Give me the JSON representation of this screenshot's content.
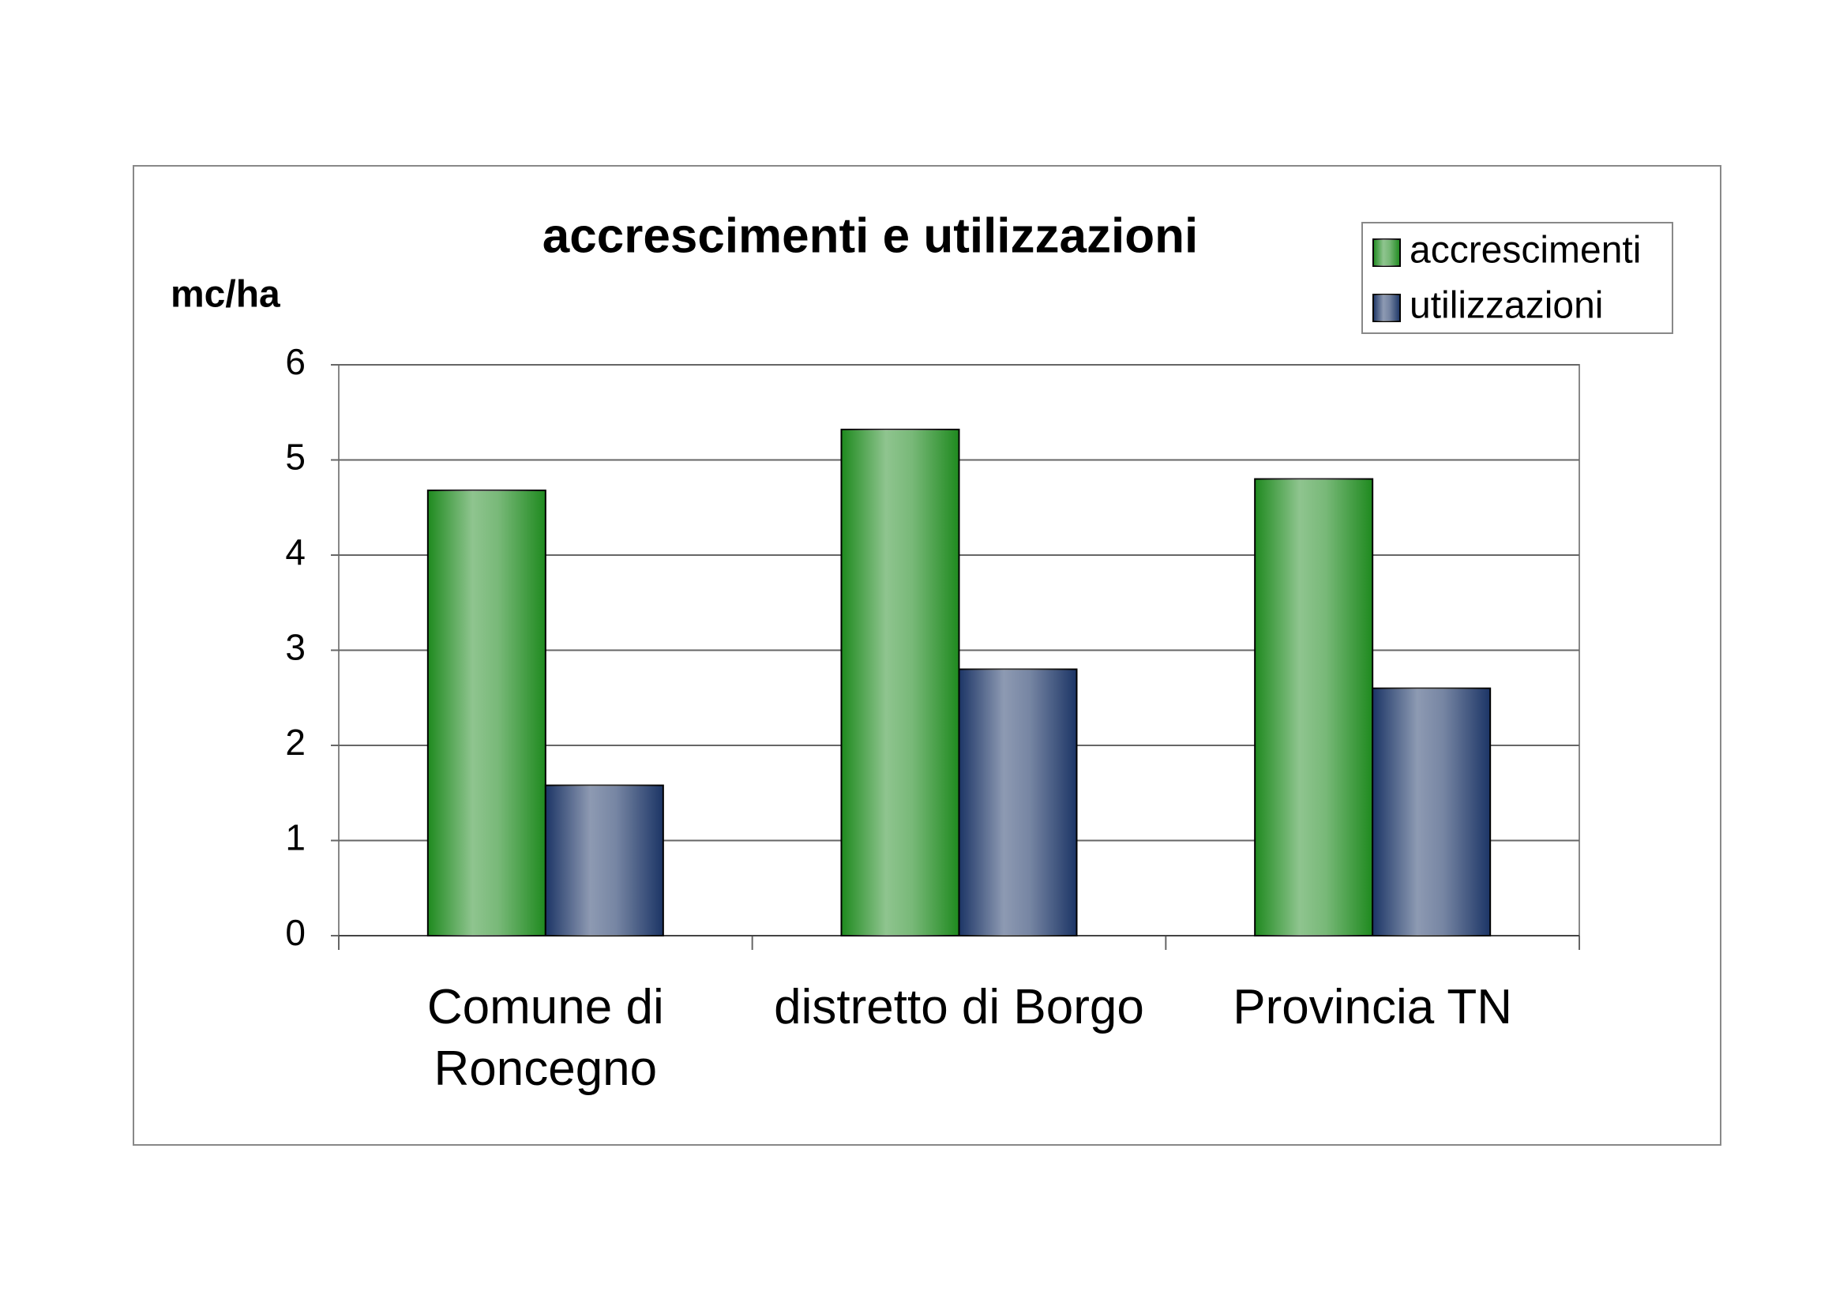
{
  "chart_data": {
    "type": "bar",
    "title": "accrescimenti e utilizzazioni",
    "y_axis_label": "mc/ha",
    "categories": [
      "Comune di Roncegno",
      "distretto di Borgo",
      "Provincia TN"
    ],
    "series": [
      {
        "name": "accrescimenti",
        "color": "#1f8a1f",
        "values": [
          4.68,
          5.32,
          4.8
        ]
      },
      {
        "name": "utilizzazioni",
        "color": "#1c3566",
        "values": [
          1.58,
          2.8,
          2.6
        ]
      }
    ],
    "ylim": [
      0,
      6
    ],
    "yticks": [
      0,
      1,
      2,
      3,
      4,
      5,
      6
    ],
    "grid": true,
    "legend": "top-right"
  }
}
